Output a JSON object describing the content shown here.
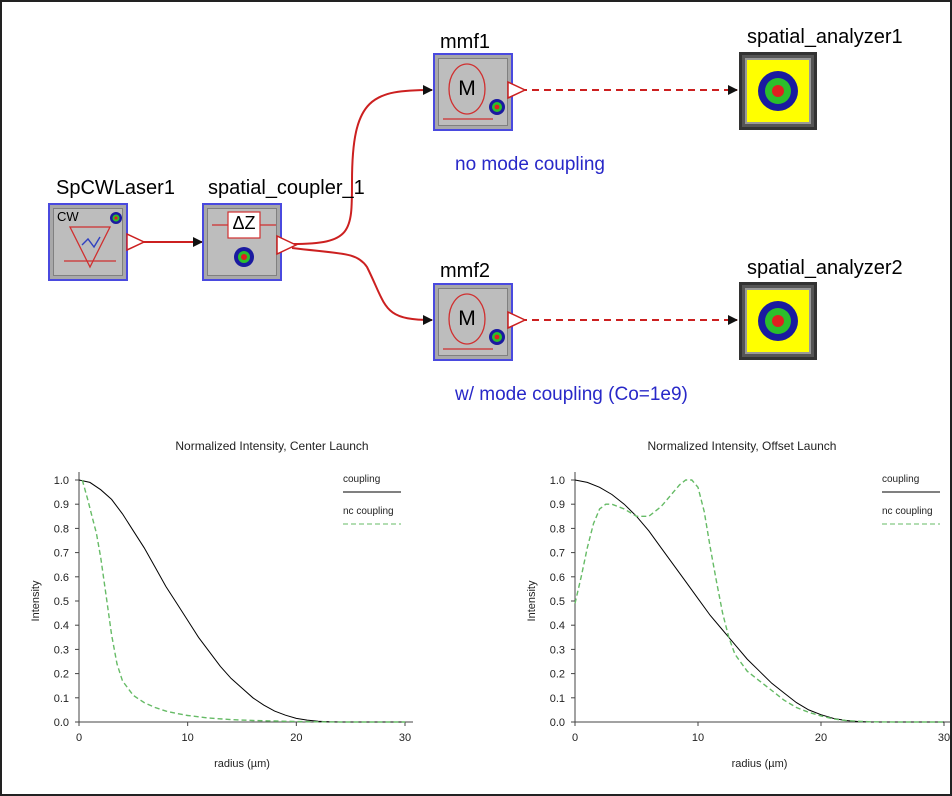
{
  "schematic": {
    "blocks": {
      "laser": {
        "name": "SpCWLaser1",
        "glyph": "CW"
      },
      "coupler": {
        "name": "spatial_coupler_1",
        "glyph": "ΔZ"
      },
      "mmf1": {
        "name": "mmf1",
        "glyph": "M"
      },
      "mmf2": {
        "name": "mmf2",
        "glyph": "M"
      },
      "analyzer1": {
        "name": "spatial_analyzer1"
      },
      "analyzer2": {
        "name": "spatial_analyzer2"
      }
    },
    "notes": {
      "upper": "no mode coupling",
      "lower": "w/ mode coupling (Co=1e9)"
    },
    "colors": {
      "wire": "#cc2020",
      "note": "#2828c8",
      "block_border": "#4a4adf",
      "analyzer_fill": "#ffff00"
    }
  },
  "chart_data": [
    {
      "type": "line",
      "title": "Normalized Intensity, Center Launch",
      "xlabel": "radius (µm)",
      "ylabel": "Intensity",
      "xlim": [
        0,
        30
      ],
      "ylim": [
        0,
        1.0
      ],
      "xticks": [
        "0",
        "10",
        "20",
        "30"
      ],
      "yticks": [
        "0.0",
        "0.1",
        "0.2",
        "0.3",
        "0.4",
        "0.5",
        "0.6",
        "0.7",
        "0.8",
        "0.9",
        "1.0"
      ],
      "legend_position": "top-right",
      "series": [
        {
          "name": "coupling",
          "color": "#000000",
          "style": "solid",
          "x": [
            0,
            1,
            2,
            3,
            4,
            5,
            6,
            7,
            8,
            9,
            10,
            11,
            12,
            13,
            14,
            15,
            16,
            17,
            18,
            19,
            20,
            21,
            22,
            23,
            24,
            25,
            26,
            27,
            28,
            29,
            30
          ],
          "y": [
            1.0,
            0.99,
            0.96,
            0.92,
            0.86,
            0.79,
            0.72,
            0.64,
            0.56,
            0.49,
            0.42,
            0.35,
            0.29,
            0.23,
            0.18,
            0.14,
            0.1,
            0.07,
            0.045,
            0.028,
            0.015,
            0.008,
            0.003,
            0.001,
            0.0,
            0.0,
            0.0,
            0.0,
            0.0,
            0.0,
            0.0
          ]
        },
        {
          "name": "nc coupling",
          "color": "#66bb66",
          "style": "dashed",
          "x": [
            0.3,
            0.8,
            1.2,
            1.6,
            2,
            2.5,
            3,
            3.5,
            4,
            5,
            6,
            7,
            8,
            9,
            10,
            12,
            14,
            16,
            18,
            20,
            22,
            24,
            26,
            28,
            30
          ],
          "y": [
            1.0,
            0.92,
            0.85,
            0.78,
            0.68,
            0.52,
            0.36,
            0.24,
            0.17,
            0.11,
            0.08,
            0.06,
            0.045,
            0.035,
            0.027,
            0.016,
            0.01,
            0.006,
            0.004,
            0.002,
            0.001,
            0.0,
            0.0,
            0.0,
            0.0
          ]
        }
      ]
    },
    {
      "type": "line",
      "title": "Normalized Intensity, Offset Launch",
      "xlabel": "radius (µm)",
      "ylabel": "Intensity",
      "xlim": [
        0,
        30
      ],
      "ylim": [
        0,
        1.0
      ],
      "xticks": [
        "0",
        "10",
        "20",
        "30"
      ],
      "yticks": [
        "0.0",
        "0.1",
        "0.2",
        "0.3",
        "0.4",
        "0.5",
        "0.6",
        "0.7",
        "0.8",
        "0.9",
        "1.0"
      ],
      "legend_position": "top-right",
      "series": [
        {
          "name": "coupling",
          "color": "#000000",
          "style": "solid",
          "x": [
            0,
            1,
            2,
            3,
            4,
            5,
            6,
            7,
            8,
            9,
            10,
            11,
            12,
            13,
            14,
            15,
            16,
            17,
            18,
            19,
            20,
            21,
            22,
            23,
            24,
            25,
            26,
            27,
            28,
            29,
            30
          ],
          "y": [
            1.0,
            0.99,
            0.97,
            0.94,
            0.9,
            0.85,
            0.79,
            0.72,
            0.65,
            0.58,
            0.51,
            0.44,
            0.38,
            0.32,
            0.26,
            0.21,
            0.16,
            0.12,
            0.08,
            0.05,
            0.03,
            0.015,
            0.006,
            0.002,
            0.0,
            0.0,
            0.0,
            0.0,
            0.0,
            0.0,
            0.0
          ]
        },
        {
          "name": "nc coupling",
          "color": "#66bb66",
          "style": "dashed",
          "x": [
            0,
            0.5,
            1,
            1.5,
            2,
            2.5,
            3,
            3.5,
            4,
            5,
            6,
            7,
            8,
            8.5,
            9,
            9.5,
            10,
            10.5,
            11,
            11.5,
            12,
            12.5,
            13,
            14,
            15,
            16,
            17,
            18,
            19,
            20,
            21,
            22,
            23,
            24,
            26,
            28,
            30
          ],
          "y": [
            0.49,
            0.6,
            0.72,
            0.82,
            0.88,
            0.9,
            0.9,
            0.89,
            0.88,
            0.85,
            0.85,
            0.89,
            0.95,
            0.98,
            1.0,
            1.0,
            0.97,
            0.87,
            0.72,
            0.58,
            0.45,
            0.35,
            0.28,
            0.21,
            0.17,
            0.13,
            0.09,
            0.06,
            0.04,
            0.025,
            0.013,
            0.006,
            0.003,
            0.001,
            0.0,
            0.0,
            0.0
          ]
        }
      ]
    }
  ]
}
